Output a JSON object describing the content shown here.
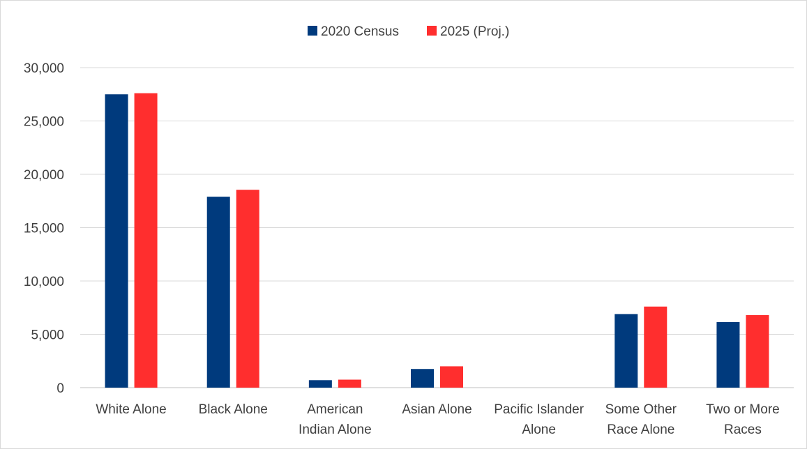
{
  "chart_data": {
    "type": "bar",
    "title": "",
    "xlabel": "",
    "ylabel": "",
    "categories": [
      [
        "White Alone"
      ],
      [
        "Black Alone"
      ],
      [
        "American",
        "Indian Alone"
      ],
      [
        "Asian Alone"
      ],
      [
        "Pacific Islander",
        "Alone"
      ],
      [
        "Some Other",
        "Race Alone"
      ],
      [
        "Two or More",
        "Races"
      ]
    ],
    "series": [
      {
        "name": "2020 Census",
        "color": "#003A7D",
        "values": [
          27500,
          17900,
          700,
          1750,
          0,
          6900,
          6150
        ]
      },
      {
        "name": "2025 (Proj.)",
        "color": "#FF2E2E",
        "values": [
          27600,
          18550,
          750,
          2000,
          0,
          7600,
          6800
        ]
      }
    ],
    "ylim": [
      0,
      30000
    ],
    "yticks": [
      "0",
      "5,000",
      "10,000",
      "15,000",
      "20,000",
      "25,000",
      "30,000"
    ],
    "grid": true,
    "legend_position": "top-center"
  }
}
